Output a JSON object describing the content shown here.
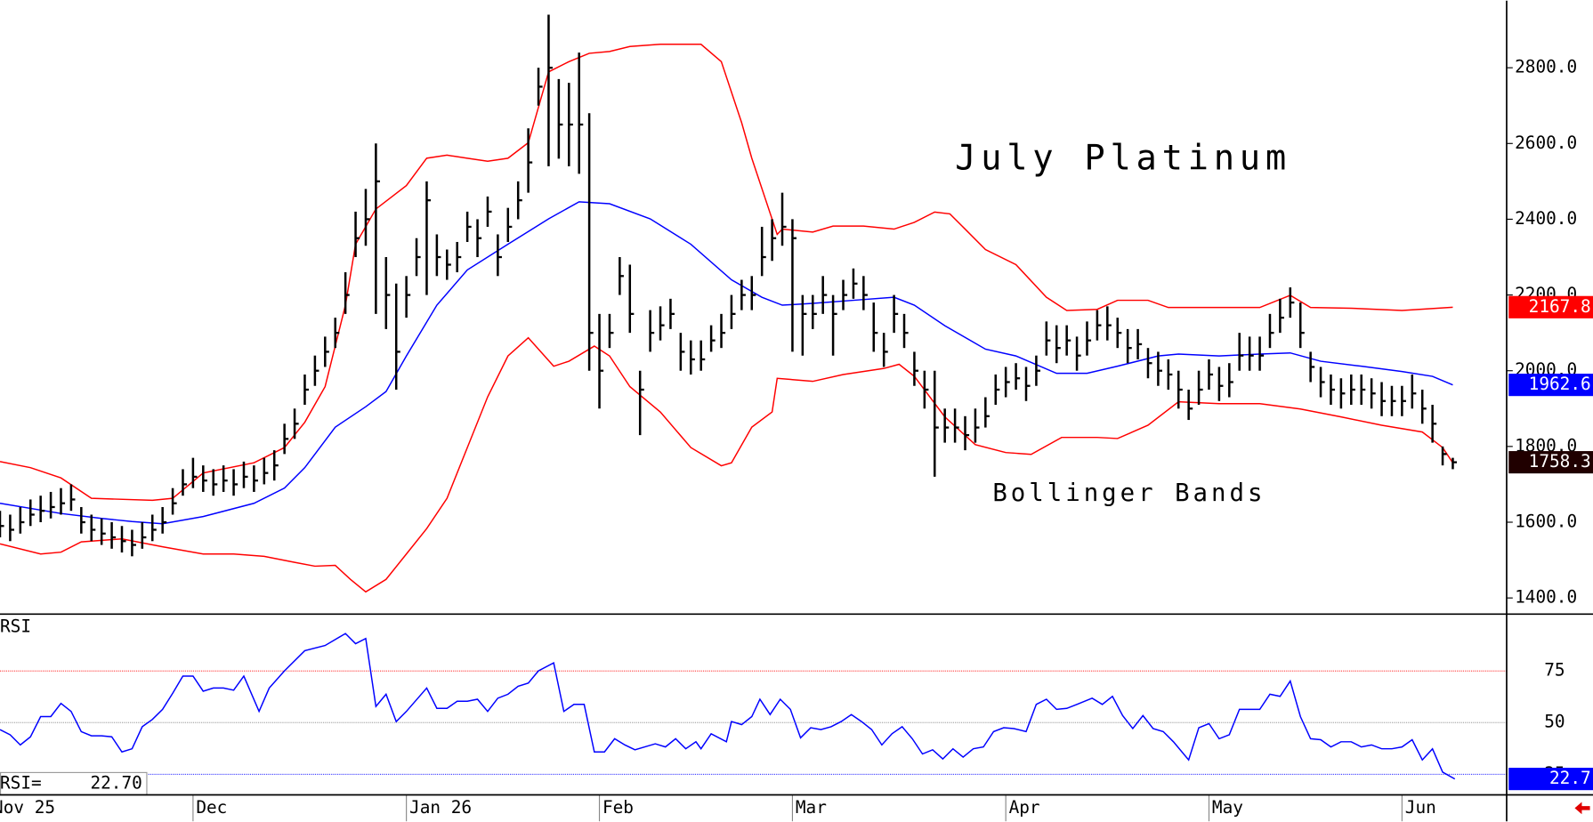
{
  "chart_data": [
    {
      "type": "ohlc",
      "title": "July Platinum",
      "annotation": "Bollinger Bands",
      "annotation_color": "#ff0000",
      "xlim": [
        0,
        148
      ],
      "ylim": [
        1360,
        2977
      ],
      "yticks": [
        {
          "value": 1400,
          "label": "1400.0"
        },
        {
          "value": 1600,
          "label": "1600.0"
        },
        {
          "value": 1800,
          "label": "1800.0"
        },
        {
          "value": 2000,
          "label": "2000.0"
        },
        {
          "value": 2200,
          "label": "2200.0"
        },
        {
          "value": 2400,
          "label": "2400.0"
        },
        {
          "value": 2600,
          "label": "2600.0"
        },
        {
          "value": 2800,
          "label": "2800.0"
        }
      ],
      "bars": {
        "color": "#000000",
        "last_color": "#200000",
        "high": [
          1630,
          1620,
          1640,
          1660,
          1670,
          1680,
          1690,
          1700,
          1640,
          1620,
          1610,
          1600,
          1590,
          1580,
          1600,
          1620,
          1640,
          1690,
          1740,
          1770,
          1750,
          1740,
          1750,
          1740,
          1760,
          1750,
          1770,
          1790,
          1860,
          1900,
          1990,
          2040,
          2090,
          2140,
          2260,
          2420,
          2480,
          2600,
          2300,
          2230,
          2250,
          2350,
          2500,
          2360,
          2320,
          2340,
          2420,
          2400,
          2460,
          2360,
          2430,
          2500,
          2640,
          2800,
          2940,
          2770,
          2760,
          2840,
          2680,
          2150,
          2150,
          2300,
          2280,
          2000,
          2160,
          2170,
          2190,
          2100,
          2080,
          2080,
          2120,
          2150,
          2200,
          2240,
          2250,
          2380,
          2400,
          2470,
          2400,
          2200,
          2200,
          2250,
          2200,
          2240,
          2270,
          2250,
          2180,
          2100,
          2200,
          2150,
          2050,
          2000,
          2000,
          1900,
          1900,
          1880,
          1900,
          1930,
          1990,
          2010,
          2020,
          2010,
          2040,
          2130,
          2120,
          2120,
          2090,
          2130,
          2160,
          2170,
          2140,
          2110,
          2110,
          2060,
          2050,
          2030,
          2000,
          1950,
          2000,
          2030,
          2010,
          2020,
          2100,
          2090,
          2090,
          2150,
          2190,
          2220,
          2180,
          2050,
          2010,
          1990,
          1980,
          1990,
          1990,
          1980,
          1970,
          1960,
          1960,
          1990,
          1950,
          1910,
          1800,
          1770
        ],
        "low": [
          1560,
          1550,
          1570,
          1590,
          1600,
          1610,
          1620,
          1630,
          1570,
          1550,
          1540,
          1530,
          1520,
          1510,
          1530,
          1550,
          1570,
          1620,
          1670,
          1690,
          1680,
          1670,
          1680,
          1670,
          1690,
          1680,
          1700,
          1710,
          1780,
          1820,
          1910,
          1960,
          2010,
          2060,
          2150,
          2300,
          2330,
          2150,
          2110,
          1950,
          2140,
          2250,
          2200,
          2250,
          2240,
          2260,
          2340,
          2300,
          2380,
          2250,
          2340,
          2400,
          2470,
          2700,
          2540,
          2560,
          2540,
          2520,
          2000,
          1900,
          2060,
          2200,
          2100,
          1830,
          2050,
          2080,
          2110,
          2000,
          1990,
          2000,
          2050,
          2060,
          2110,
          2160,
          2160,
          2250,
          2290,
          2330,
          2050,
          2040,
          2110,
          2150,
          2040,
          2160,
          2190,
          2160,
          2050,
          2010,
          2100,
          2060,
          1960,
          1900,
          1720,
          1810,
          1810,
          1790,
          1810,
          1850,
          1910,
          1930,
          1950,
          1920,
          1960,
          2040,
          2020,
          2040,
          2000,
          2040,
          2080,
          2080,
          2060,
          2020,
          2030,
          1980,
          1960,
          1950,
          1900,
          1870,
          1910,
          1950,
          1920,
          1930,
          2000,
          2000,
          2000,
          2060,
          2100,
          2140,
          2060,
          1970,
          1930,
          1910,
          1900,
          1910,
          1910,
          1900,
          1880,
          1880,
          1880,
          1900,
          1860,
          1810,
          1750,
          1740
        ],
        "close": [
          1590,
          1580,
          1600,
          1620,
          1630,
          1640,
          1650,
          1660,
          1600,
          1580,
          1570,
          1560,
          1550,
          1540,
          1560,
          1580,
          1600,
          1650,
          1700,
          1720,
          1710,
          1700,
          1710,
          1700,
          1720,
          1710,
          1730,
          1750,
          1820,
          1860,
          1950,
          2000,
          2050,
          2100,
          2200,
          2350,
          2400,
          2500,
          2200,
          2050,
          2200,
          2300,
          2450,
          2300,
          2280,
          2300,
          2380,
          2350,
          2420,
          2300,
          2380,
          2450,
          2550,
          2750,
          2800,
          2650,
          2650,
          2650,
          2100,
          2000,
          2100,
          2250,
          2150,
          1950,
          2100,
          2120,
          2150,
          2050,
          2030,
          2030,
          2080,
          2100,
          2150,
          2200,
          2200,
          2300,
          2350,
          2380,
          2350,
          2150,
          2150,
          2200,
          2150,
          2200,
          2230,
          2200,
          2100,
          2050,
          2150,
          2100,
          2000,
          1950,
          1850,
          1850,
          1850,
          1830,
          1850,
          1880,
          1950,
          1970,
          1980,
          1960,
          2000,
          2080,
          2060,
          2080,
          2040,
          2080,
          2120,
          2120,
          2100,
          2060,
          2070,
          2020,
          2000,
          1990,
          1950,
          1900,
          1950,
          1990,
          1960,
          1970,
          2040,
          2040,
          2040,
          2100,
          2140,
          2180,
          2100,
          2010,
          1970,
          1950,
          1940,
          1950,
          1950,
          1940,
          1920,
          1920,
          1920,
          1940,
          1900,
          1860,
          1780,
          1758.3
        ]
      },
      "bands": [
        {
          "color": "#ff0000",
          "x": [
            0,
            3,
            6,
            9,
            15,
            17,
            20,
            25,
            28,
            30,
            32,
            34,
            35,
            37,
            40,
            42,
            44,
            46,
            48,
            50,
            52,
            54,
            56,
            58,
            60,
            62,
            65,
            69,
            71,
            73,
            74,
            76.5,
            77,
            80,
            82,
            85,
            88,
            90,
            92,
            93.5,
            95,
            97,
            100,
            103,
            105,
            108,
            110,
            113,
            115,
            120,
            124,
            127,
            129,
            133,
            138,
            143
          ],
          "values": [
            1760,
            1744,
            1717,
            1663,
            1658,
            1663,
            1730,
            1757,
            1797,
            1864,
            1958,
            2173,
            2334,
            2427,
            2489,
            2561,
            2569,
            2561,
            2553,
            2561,
            2602,
            2789,
            2816,
            2838,
            2843,
            2856,
            2862,
            2862,
            2816,
            2655,
            2561,
            2360,
            2374,
            2366,
            2382,
            2382,
            2374,
            2392,
            2419,
            2414,
            2374,
            2320,
            2280,
            2194,
            2159,
            2162,
            2186,
            2186,
            2167,
            2167,
            2167,
            2199,
            2167,
            2165,
            2159,
            2167.8
          ]
        },
        {
          "color": "#0000ff",
          "x": [
            0,
            6,
            10,
            13,
            16,
            20,
            25,
            28,
            30,
            33,
            36,
            38,
            40,
            43,
            46,
            50,
            54,
            57,
            60,
            64,
            68,
            72,
            75,
            77,
            80,
            84,
            88,
            90,
            93,
            97,
            100,
            104,
            107,
            110,
            114,
            116,
            120,
            124,
            127,
            130,
            134,
            138,
            141,
            143
          ],
          "values": [
            1650,
            1623,
            1610,
            1602,
            1596,
            1615,
            1650,
            1690,
            1744,
            1851,
            1905,
            1945,
            2039,
            2173,
            2266,
            2334,
            2401,
            2446,
            2441,
            2401,
            2334,
            2240,
            2194,
            2173,
            2178,
            2186,
            2194,
            2173,
            2119,
            2057,
            2039,
            1993,
            1993,
            2012,
            2039,
            2044,
            2039,
            2044,
            2047,
            2025,
            2012,
            1998,
            1985,
            1962.6
          ]
        },
        {
          "color": "#ff0000",
          "x": [
            0,
            4,
            6,
            8,
            12,
            16,
            20,
            23,
            26,
            29,
            31,
            33,
            34.5,
            36,
            38,
            40,
            42,
            44,
            46,
            48,
            50,
            52,
            54.5,
            56,
            58.5,
            60,
            62,
            65,
            68,
            71,
            72,
            74,
            76,
            76.5,
            80,
            83,
            87,
            88.5,
            90,
            93,
            96,
            99,
            101.5,
            104.5,
            108,
            110,
            113,
            116,
            120,
            124,
            128,
            132,
            136,
            140,
            142,
            143
          ],
          "values": [
            1543,
            1516,
            1521,
            1548,
            1556,
            1535,
            1516,
            1516,
            1510,
            1494,
            1484,
            1486,
            1449,
            1416,
            1449,
            1516,
            1583,
            1663,
            1797,
            1931,
            2039,
            2087,
            2012,
            2025,
            2065,
            2039,
            1958,
            1891,
            1797,
            1749,
            1757,
            1851,
            1891,
            1980,
            1972,
            1990,
            2006,
            2017,
            1985,
            1878,
            1805,
            1784,
            1779,
            1824,
            1824,
            1821,
            1856,
            1918,
            1913,
            1913,
            1899,
            1878,
            1856,
            1838,
            1797,
            1757
          ]
        }
      ],
      "last_value_boxes": [
        0,
        1
      ]
    },
    {
      "type": "line",
      "title": "RSI",
      "color": "#0000ff",
      "readout": {
        "label": "RSI=",
        "text": "22.70"
      },
      "xlim": [
        0,
        148
      ],
      "ylim": [
        15,
        102
      ],
      "yticks": [
        25,
        50,
        75
      ],
      "grid_colors": [
        "#0000ff",
        "#808080",
        "#ff0000"
      ],
      "xticks": [
        {
          "value": -1,
          "label": "Nov 25"
        },
        {
          "value": 19,
          "label": "Dec"
        },
        {
          "value": 40,
          "label": "Jan 26"
        },
        {
          "value": 59,
          "label": "Feb"
        },
        {
          "value": 78,
          "label": "Mar"
        },
        {
          "value": 99,
          "label": "Apr"
        },
        {
          "value": 119,
          "label": "May"
        },
        {
          "value": 138,
          "label": "Jun"
        }
      ],
      "x": [
        0,
        1,
        2,
        3,
        4,
        5,
        6,
        7,
        8,
        9,
        10,
        11,
        12,
        13,
        14,
        15,
        16,
        17,
        18,
        19,
        20,
        21,
        22,
        23,
        24,
        25.5,
        26.5,
        28,
        30,
        32,
        34,
        35,
        36,
        37,
        38,
        39,
        40,
        42,
        43,
        44,
        45,
        46,
        47,
        48,
        49,
        50,
        51,
        52,
        53,
        54.5,
        55.5,
        56.5,
        57.5,
        58.5,
        59.5,
        60.5,
        61.5,
        62.5,
        64.5,
        65.5,
        66.5,
        67.5,
        68.5,
        69,
        70,
        71.5,
        72,
        73,
        74,
        74.8,
        75.8,
        76.8,
        77.8,
        78.8,
        79.8,
        80.8,
        81.8,
        82.8,
        83.8,
        84.8,
        85.8,
        86.8,
        87.8,
        88.8,
        89.8,
        90.8,
        91.8,
        92.8,
        93.8,
        94.8,
        95.8,
        96.8,
        97.8,
        98.8,
        99.8,
        101,
        102,
        103,
        104,
        105,
        106,
        107.5,
        108.5,
        109.5,
        110.5,
        111.5,
        112.5,
        113.5,
        114.5,
        115.5,
        117,
        118,
        119,
        120,
        121,
        122,
        123,
        124,
        125,
        126,
        127,
        128,
        129,
        130,
        131,
        132,
        133,
        134,
        135,
        136,
        137,
        138,
        139,
        140,
        141,
        142,
        143.2
      ],
      "values": [
        46.6,
        44.1,
        39.2,
        43.1,
        52.9,
        52.9,
        59.3,
        55.4,
        45.6,
        43.6,
        43.6,
        43.1,
        35.8,
        37.3,
        48.0,
        51.5,
        56.4,
        64.2,
        72.5,
        72.5,
        65.2,
        66.7,
        66.7,
        65.7,
        72.5,
        55.4,
        66.7,
        75,
        84.8,
        87.3,
        93.1,
        88.2,
        90.7,
        57.8,
        63.7,
        50.5,
        55.4,
        66.7,
        56.9,
        56.9,
        60.3,
        60.3,
        61.3,
        55.4,
        61.8,
        63.7,
        67.6,
        69.1,
        75,
        78.9,
        55.4,
        58.8,
        58.8,
        35.8,
        35.8,
        42.2,
        39.2,
        36.8,
        39.7,
        38.2,
        42.2,
        37.3,
        40.7,
        37.3,
        44.6,
        40.7,
        50.5,
        49.0,
        52.9,
        61.3,
        53.9,
        61.3,
        56.4,
        42.6,
        47.5,
        46.6,
        48.0,
        50.5,
        53.9,
        50.5,
        46.6,
        39.2,
        44.6,
        48.0,
        42.2,
        34.8,
        36.8,
        32.4,
        37.3,
        33.3,
        37.3,
        38.2,
        45.6,
        47.5,
        47.1,
        45.6,
        58.8,
        61.3,
        56.4,
        56.9,
        58.8,
        61.8,
        58.8,
        62.7,
        53.4,
        47.1,
        53.4,
        47.1,
        45.6,
        40.7,
        31.9,
        47.5,
        49.5,
        42.2,
        44.1,
        56.4,
        56.4,
        56.4,
        63.7,
        62.7,
        70.1,
        52.9,
        42.2,
        41.7,
        38.2,
        40.7,
        40.7,
        38.2,
        39.2,
        37.3,
        37.3,
        38.2,
        41.7,
        31.9,
        37.3,
        26.0,
        22.7
      ]
    }
  ]
}
